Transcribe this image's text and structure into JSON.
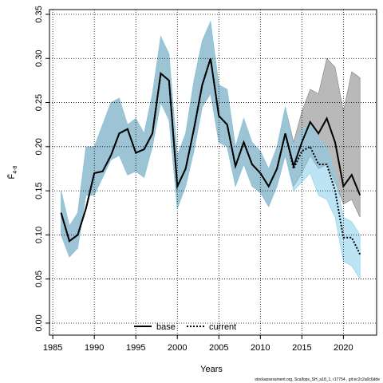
{
  "chart_data": {
    "type": "line",
    "xlabel": "Years",
    "ylabel": {
      "main": "F̄",
      "sub": "4-8"
    },
    "footer": "stockassessment.org, Scallops_SH_a18_1, r17754 , git:ec2c2a0c6dde",
    "x": [
      1986,
      1987,
      1988,
      1989,
      1990,
      1991,
      1992,
      1993,
      1994,
      1995,
      1996,
      1997,
      1998,
      1999,
      2000,
      2001,
      2002,
      2003,
      2004,
      2005,
      2006,
      2007,
      2008,
      2009,
      2010,
      2011,
      2012,
      2013,
      2014,
      2015,
      2016,
      2017,
      2018,
      2019,
      2020,
      2021,
      2022
    ],
    "series": [
      {
        "name": "base",
        "color": "#000000",
        "dash": false,
        "band_color": "#808080",
        "values": [
          0.125,
          0.093,
          0.1,
          0.13,
          0.17,
          0.172,
          0.19,
          0.215,
          0.22,
          0.193,
          0.197,
          0.215,
          0.283,
          0.275,
          0.155,
          0.175,
          0.22,
          0.27,
          0.3,
          0.235,
          0.225,
          0.178,
          0.205,
          0.18,
          0.17,
          0.155,
          0.175,
          0.215,
          0.178,
          0.205,
          0.228,
          0.215,
          0.232,
          0.205,
          0.155,
          0.168,
          0.145
        ],
        "upper": [
          0.15,
          0.11,
          0.125,
          0.2,
          0.2,
          0.225,
          0.25,
          0.255,
          0.225,
          0.232,
          0.215,
          0.26,
          0.325,
          0.305,
          0.19,
          0.215,
          0.275,
          0.32,
          0.342,
          0.27,
          0.265,
          0.2,
          0.232,
          0.205,
          0.195,
          0.175,
          0.2,
          0.245,
          0.205,
          0.24,
          0.265,
          0.26,
          0.3,
          0.29,
          0.24,
          0.285,
          0.278
        ],
        "lower": [
          0.1,
          0.075,
          0.085,
          0.145,
          0.145,
          0.165,
          0.185,
          0.19,
          0.168,
          0.172,
          0.165,
          0.2,
          0.25,
          0.23,
          0.13,
          0.155,
          0.195,
          0.245,
          0.26,
          0.205,
          0.2,
          0.155,
          0.18,
          0.155,
          0.148,
          0.132,
          0.155,
          0.19,
          0.155,
          0.17,
          0.19,
          0.175,
          0.18,
          0.16,
          0.135,
          0.14,
          0.12
        ]
      },
      {
        "name": "current",
        "color": "#000000",
        "dash": true,
        "band_color": "#87ceeb",
        "values": [
          0.125,
          0.093,
          0.1,
          0.13,
          0.17,
          0.172,
          0.19,
          0.215,
          0.22,
          0.193,
          0.197,
          0.215,
          0.283,
          0.275,
          0.155,
          0.175,
          0.22,
          0.27,
          0.3,
          0.235,
          0.225,
          0.178,
          0.205,
          0.18,
          0.17,
          0.155,
          0.175,
          0.215,
          0.175,
          0.195,
          0.2,
          0.18,
          0.18,
          0.15,
          0.097,
          0.097,
          0.078
        ],
        "upper": [
          0.15,
          0.11,
          0.125,
          0.2,
          0.2,
          0.225,
          0.25,
          0.255,
          0.225,
          0.232,
          0.215,
          0.26,
          0.325,
          0.305,
          0.19,
          0.215,
          0.275,
          0.32,
          0.342,
          0.27,
          0.265,
          0.2,
          0.232,
          0.205,
          0.195,
          0.175,
          0.2,
          0.245,
          0.2,
          0.22,
          0.225,
          0.21,
          0.2,
          0.17,
          0.12,
          0.115,
          0.1
        ],
        "lower": [
          0.1,
          0.075,
          0.085,
          0.145,
          0.145,
          0.165,
          0.185,
          0.19,
          0.168,
          0.172,
          0.165,
          0.2,
          0.25,
          0.23,
          0.13,
          0.155,
          0.195,
          0.245,
          0.26,
          0.205,
          0.2,
          0.155,
          0.18,
          0.155,
          0.148,
          0.132,
          0.155,
          0.19,
          0.15,
          0.16,
          0.17,
          0.145,
          0.14,
          0.12,
          0.07,
          0.065,
          0.05
        ]
      }
    ],
    "xlim": [
      1984.6,
      2024
    ],
    "xticks": [
      1985,
      1990,
      1995,
      2000,
      2005,
      2010,
      2015,
      2020
    ],
    "ylim": [
      -0.0136,
      0.3554
    ],
    "yticks": [
      {
        "value": 0,
        "label": "0.00"
      },
      0.05,
      {
        "value": 0.1,
        "label": "0.10"
      },
      0.15,
      {
        "value": 0.2,
        "label": "0.20"
      },
      0.25,
      {
        "value": 0.3,
        "label": "0.30"
      },
      0.35
    ],
    "grid": true,
    "legend": "bottom"
  }
}
